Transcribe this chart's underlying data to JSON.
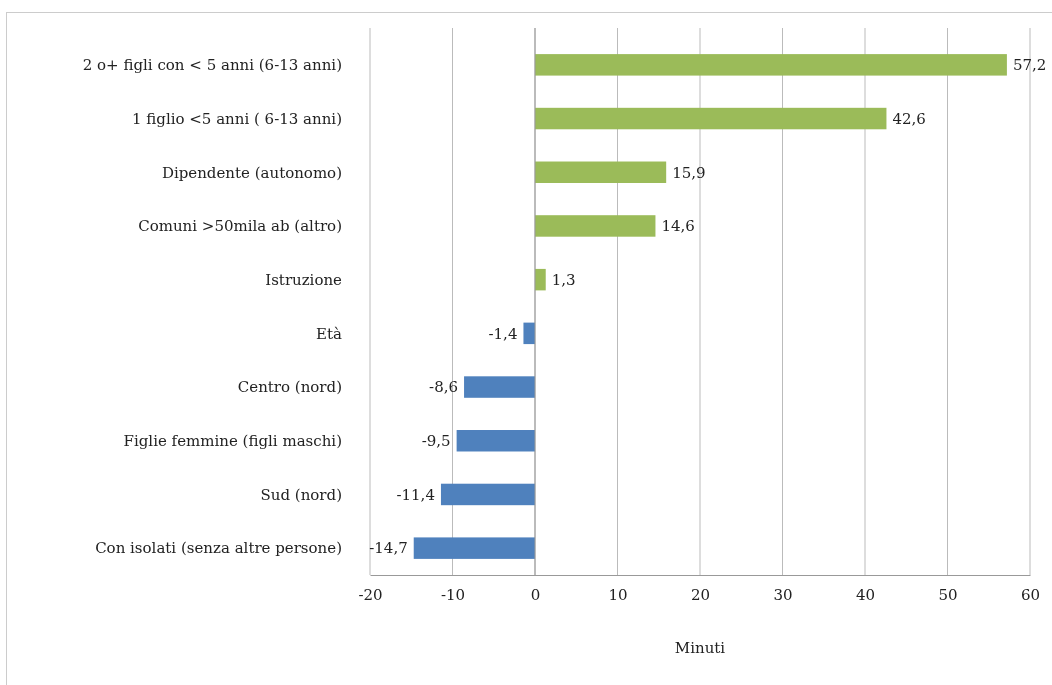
{
  "chart_data": {
    "type": "bar",
    "orientation": "horizontal",
    "xlabel": "Minuti",
    "categories": [
      "2 o+ figli con < 5 anni (6-13 anni)",
      "1 figlio <5 anni ( 6-13 anni)",
      "Dipendente (autonomo)",
      "Comuni >50mila ab (altro)",
      "Istruzione",
      "Età",
      "Centro (nord)",
      "Figlie femmine (figli maschi)",
      "Sud (nord)",
      "Con isolati (senza altre persone)"
    ],
    "values": [
      57.2,
      42.6,
      15.9,
      14.6,
      1.3,
      -1.4,
      -8.6,
      -9.5,
      -11.4,
      -14.7
    ],
    "colors": [
      "#9bbb59",
      "#9bbb59",
      "#9bbb59",
      "#9bbb59",
      "#9bbb59",
      "#4f81bd",
      "#4f81bd",
      "#4f81bd",
      "#4f81bd",
      "#4f81bd"
    ],
    "value_labels": [
      "57,2",
      "42,6",
      "15,9",
      "14,6",
      "1,3",
      "-1,4",
      "-8,6",
      "-9,5",
      "-11,4",
      "-14,7"
    ],
    "xlim": [
      -20,
      60
    ],
    "xticks": [
      -20,
      -10,
      0,
      10,
      20,
      30,
      40,
      50,
      60
    ],
    "grid": "x"
  }
}
